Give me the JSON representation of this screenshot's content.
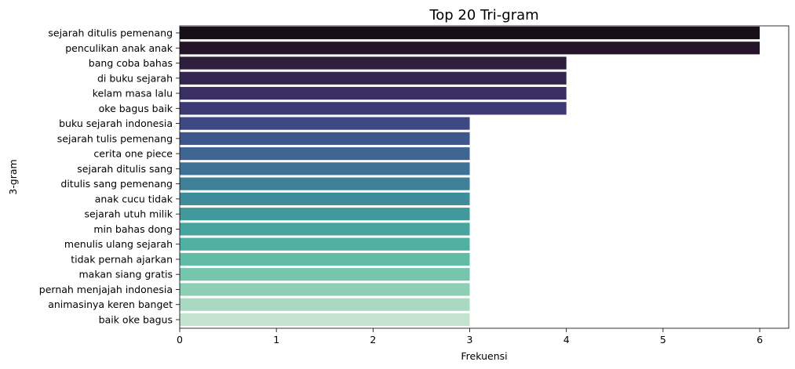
{
  "chart_data": {
    "type": "bar",
    "orientation": "horizontal",
    "title": "Top 20 Tri-gram",
    "xlabel": "Frekuensi",
    "ylabel": "3-gram",
    "xlim": [
      0,
      6.3
    ],
    "xticks": [
      0,
      1,
      2,
      3,
      4,
      5,
      6
    ],
    "grid": false,
    "categories": [
      "sejarah ditulis pemenang",
      "penculikan anak anak",
      "bang coba bahas",
      "di buku sejarah",
      "kelam masa lalu",
      "oke bagus baik",
      "buku sejarah indonesia",
      "sejarah tulis pemenang",
      "cerita one piece",
      "sejarah ditulis sang",
      "ditulis sang pemenang",
      "anak cucu tidak",
      "sejarah utuh milik",
      "min bahas dong",
      "menulis ulang sejarah",
      "tidak pernah ajarkan",
      "makan siang gratis",
      "pernah menjajah indonesia",
      "animasinya keren banget",
      "baik oke bagus"
    ],
    "values": [
      6,
      6,
      4,
      4,
      4,
      4,
      3,
      3,
      3,
      3,
      3,
      3,
      3,
      3,
      3,
      3,
      3,
      3,
      3,
      3
    ],
    "colors": [
      "#180f17",
      "#241628",
      "#2e1e3b",
      "#35264f",
      "#3a2f63",
      "#3d3a75",
      "#3e4884",
      "#3f568d",
      "#3f6592",
      "#3f7295",
      "#3e8097",
      "#3f8d9a",
      "#41999c",
      "#46a59f",
      "#50b1a3",
      "#60bca7",
      "#74c6ad",
      "#8dcfb5",
      "#a9d9c1",
      "#c4e4d0"
    ]
  }
}
